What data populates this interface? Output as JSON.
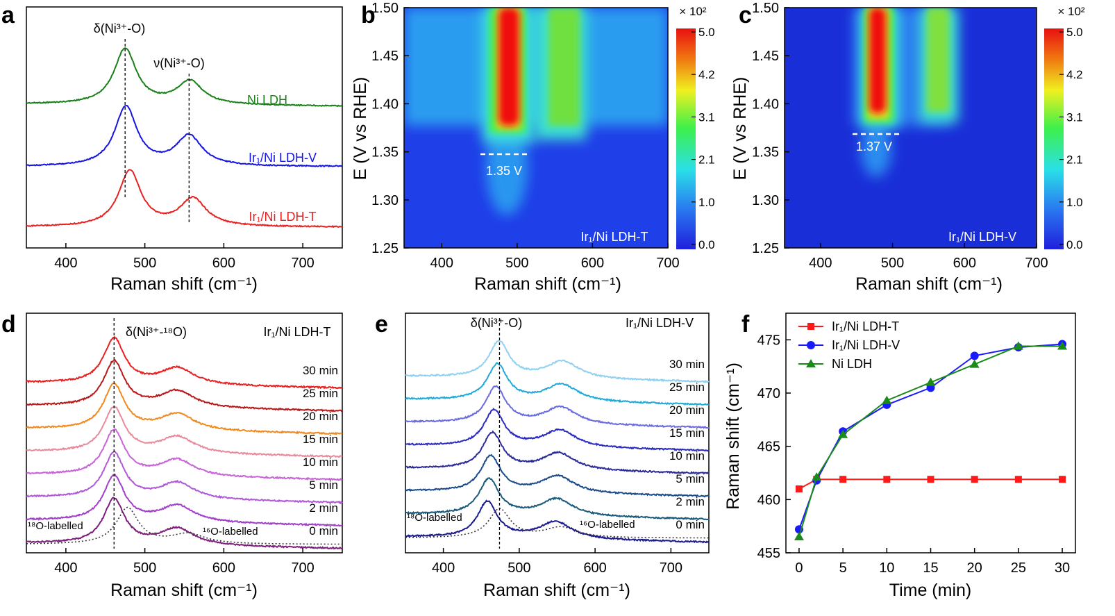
{
  "panels": [
    {
      "letter": "a",
      "type": "line",
      "xlabel": "Raman shift (cm⁻¹)",
      "ylabel": "",
      "xlim": [
        350,
        750
      ],
      "xticks": [
        400,
        500,
        600,
        700
      ],
      "markers": [
        {
          "x": 475,
          "label": "δ(Ni³⁺-O)"
        },
        {
          "x": 556,
          "label": "ν(Ni³⁺-O)"
        }
      ],
      "series": [
        {
          "name": "Ni LDH",
          "color": "#1a7f1a",
          "peaks": [
            [
              475,
              1.0
            ],
            [
              557,
              0.42
            ]
          ]
        },
        {
          "name": "Ir₁/Ni LDH-V",
          "color": "#1515e0",
          "peaks": [
            [
              476,
              0.95
            ],
            [
              556,
              0.48
            ]
          ]
        },
        {
          "name": "Ir₁/Ni LDH-T",
          "color": "#e82020",
          "peaks": [
            [
              481,
              0.85
            ],
            [
              561,
              0.42
            ]
          ]
        }
      ]
    },
    {
      "letter": "b",
      "type": "heatmap",
      "label": "Ir₁/Ni LDH-T",
      "xlabel": "Raman shift (cm⁻¹)",
      "ylabel": "E (V vs RHE)",
      "xlim": [
        350,
        700
      ],
      "ylim": [
        1.25,
        1.5
      ],
      "xticks": [
        400,
        500,
        600,
        700
      ],
      "yticks": [
        1.25,
        1.3,
        1.35,
        1.4,
        1.45,
        1.5
      ],
      "onset_v": 1.35,
      "onset_label": "1.35 V",
      "colorbar": {
        "unit": "× 10²",
        "ticks": [
          "0.0",
          "1.0",
          "2.1",
          "3.1",
          "4.2",
          "5.0"
        ]
      }
    },
    {
      "letter": "c",
      "type": "heatmap",
      "label": "Ir₁/Ni LDH-V",
      "xlabel": "Raman shift (cm⁻¹)",
      "ylabel": "E (V vs RHE)",
      "xlim": [
        350,
        700
      ],
      "ylim": [
        1.25,
        1.5
      ],
      "xticks": [
        400,
        500,
        600,
        700
      ],
      "yticks": [
        1.25,
        1.3,
        1.35,
        1.4,
        1.45,
        1.5
      ],
      "onset_v": 1.37,
      "onset_label": "1.37 V",
      "colorbar": {
        "unit": "× 10²",
        "ticks": [
          "0.0",
          "1.0",
          "2.1",
          "3.1",
          "4.2",
          "5.0"
        ]
      }
    },
    {
      "letter": "d",
      "type": "line",
      "label": "Ir₁/Ni LDH-T",
      "xlabel": "Raman shift (cm⁻¹)",
      "xlim": [
        350,
        750
      ],
      "xticks": [
        400,
        500,
        600,
        700
      ],
      "marker": {
        "x": 461,
        "label": "δ(Ni³⁺-¹⁸O)"
      },
      "ann_18": "¹⁸O-labelled",
      "ann_16": "¹⁶O-labelled",
      "times": [
        "0 min",
        "2 min",
        "5 min",
        "10 min",
        "15 min",
        "20 min",
        "25 min",
        "30 min"
      ],
      "colors": [
        "#7b1f7b",
        "#a040c8",
        "#b05ad8",
        "#c864d8",
        "#e88a9a",
        "#f08a20",
        "#b81818",
        "#e82020"
      ]
    },
    {
      "letter": "e",
      "type": "line",
      "label": "Ir₁/Ni LDH-V",
      "xlabel": "Raman shift (cm⁻¹)",
      "xlim": [
        350,
        750
      ],
      "xticks": [
        400,
        500,
        600,
        700
      ],
      "marker": {
        "x": 474,
        "label": "δ(Ni³⁺-O)"
      },
      "ann_18": "¹⁸O-labelled",
      "ann_16": "¹⁶O-labelled",
      "times": [
        "0 min",
        "2 min",
        "5 min",
        "10 min",
        "15 min",
        "20 min",
        "25 min",
        "30 min"
      ],
      "colors": [
        "#1a1a8c",
        "#1a5a7a",
        "#1a4a8a",
        "#2a2a9a",
        "#2a2ac0",
        "#6a6ae0",
        "#20a8d8",
        "#90d0f0"
      ]
    },
    {
      "letter": "f",
      "type": "line",
      "xlabel": "Time (min)",
      "ylabel": "Raman shift (cm⁻¹)",
      "xlim": [
        -1.5,
        31.5
      ],
      "ylim": [
        455,
        477.5
      ],
      "xticks": [
        0,
        5,
        10,
        15,
        20,
        25,
        30
      ],
      "yticks": [
        455,
        460,
        465,
        470,
        475
      ],
      "series": [
        {
          "name": "Ir₁/Ni LDH-T",
          "color": "#ff1a1a",
          "marker": "square",
          "x": [
            0,
            2,
            5,
            10,
            15,
            20,
            25,
            30
          ],
          "y": [
            461.0,
            461.9,
            461.9,
            461.9,
            461.9,
            461.9,
            461.9,
            461.9
          ]
        },
        {
          "name": "Ir₁/Ni LDH-V",
          "color": "#1a1aff",
          "marker": "circle",
          "x": [
            0,
            2,
            5,
            10,
            15,
            20,
            25,
            30
          ],
          "y": [
            457.2,
            461.8,
            466.4,
            468.9,
            470.5,
            473.5,
            474.3,
            474.6
          ]
        },
        {
          "name": "Ni LDH",
          "color": "#1a8a1a",
          "marker": "triangle",
          "x": [
            0,
            2,
            5,
            10,
            15,
            20,
            25,
            30
          ],
          "y": [
            456.5,
            462.1,
            466.1,
            469.3,
            471.0,
            472.7,
            474.4,
            474.4
          ]
        }
      ]
    }
  ]
}
